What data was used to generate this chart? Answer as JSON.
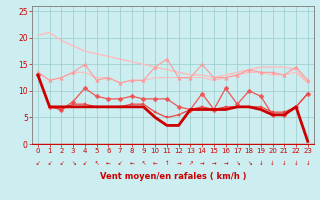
{
  "x": [
    0,
    1,
    2,
    3,
    4,
    5,
    6,
    7,
    8,
    9,
    10,
    11,
    12,
    13,
    14,
    15,
    16,
    17,
    18,
    19,
    20,
    21,
    22,
    23
  ],
  "series": [
    {
      "name": "rafales_envelope",
      "y": [
        20.5,
        21.0,
        19.5,
        18.5,
        17.5,
        17.0,
        16.5,
        16.0,
        15.5,
        15.0,
        14.5,
        14.0,
        13.5,
        13.0,
        13.0,
        12.5,
        13.0,
        13.5,
        14.0,
        14.5,
        14.5,
        14.5,
        14.0,
        11.5
      ],
      "color": "#ffbbbb",
      "lw": 1.0,
      "marker": null,
      "zorder": 2
    },
    {
      "name": "rafales_triangle",
      "y": [
        13.5,
        12.0,
        12.5,
        13.5,
        15.0,
        12.0,
        12.5,
        11.5,
        12.0,
        12.0,
        14.5,
        16.0,
        12.5,
        12.5,
        15.0,
        12.5,
        12.5,
        13.0,
        14.0,
        13.5,
        13.5,
        13.0,
        14.5,
        12.0
      ],
      "color": "#ff9999",
      "lw": 0.8,
      "marker": "^",
      "markersize": 2.5,
      "zorder": 3
    },
    {
      "name": "rafales_lower",
      "y": [
        13.5,
        12.0,
        12.5,
        13.5,
        13.5,
        12.5,
        12.5,
        11.5,
        12.0,
        12.0,
        12.5,
        12.5,
        12.5,
        12.5,
        12.5,
        12.0,
        12.5,
        13.0,
        13.5,
        13.5,
        13.0,
        13.0,
        13.5,
        11.5
      ],
      "color": "#ffbbbb",
      "lw": 0.8,
      "marker": null,
      "zorder": 2
    },
    {
      "name": "vent_diamond",
      "y": [
        13.0,
        7.0,
        6.5,
        8.0,
        10.5,
        9.0,
        8.5,
        8.5,
        9.0,
        8.5,
        8.5,
        8.5,
        7.0,
        6.5,
        9.5,
        6.5,
        10.5,
        7.5,
        10.0,
        9.0,
        5.5,
        5.5,
        7.0,
        9.5
      ],
      "color": "#ee5555",
      "lw": 0.9,
      "marker": "D",
      "markersize": 2.5,
      "zorder": 4
    },
    {
      "name": "vent_square",
      "y": [
        13.0,
        7.0,
        6.5,
        7.5,
        7.5,
        7.0,
        7.0,
        7.0,
        7.5,
        7.5,
        6.0,
        5.0,
        5.5,
        6.5,
        7.0,
        6.5,
        7.0,
        7.0,
        7.0,
        7.0,
        6.0,
        6.0,
        7.0,
        9.5
      ],
      "color": "#ee4444",
      "lw": 0.9,
      "marker": "s",
      "markersize": 2.0,
      "zorder": 4
    },
    {
      "name": "vent_bold_declining",
      "y": [
        13.0,
        7.0,
        7.0,
        7.0,
        7.0,
        7.0,
        7.0,
        7.0,
        7.0,
        7.0,
        5.0,
        3.5,
        3.5,
        6.5,
        6.5,
        6.5,
        6.5,
        7.0,
        7.0,
        6.5,
        5.5,
        5.5,
        7.0,
        0.5
      ],
      "color": "#cc0000",
      "lw": 2.0,
      "marker": null,
      "zorder": 5
    }
  ],
  "arrows": [
    "↙",
    "↙",
    "↙",
    "↘",
    "↙",
    "↖",
    "←",
    "↙",
    "←",
    "↖",
    "←",
    "↑",
    "→",
    "↗",
    "→",
    "→",
    "→",
    "↘",
    "↘",
    "↓",
    "↓",
    "↓",
    "↓",
    "↓"
  ],
  "xlabel": "Vent moyen/en rafales ( km/h )",
  "xlim": [
    -0.5,
    23.5
  ],
  "ylim": [
    0,
    26
  ],
  "yticks": [
    0,
    5,
    10,
    15,
    20,
    25
  ],
  "xticks": [
    0,
    1,
    2,
    3,
    4,
    5,
    6,
    7,
    8,
    9,
    10,
    11,
    12,
    13,
    14,
    15,
    16,
    17,
    18,
    19,
    20,
    21,
    22,
    23
  ],
  "bg_color": "#cceef0",
  "grid_color": "#99cccc",
  "tick_color": "#cc0000",
  "label_color": "#cc0000",
  "spine_color": "#888888"
}
